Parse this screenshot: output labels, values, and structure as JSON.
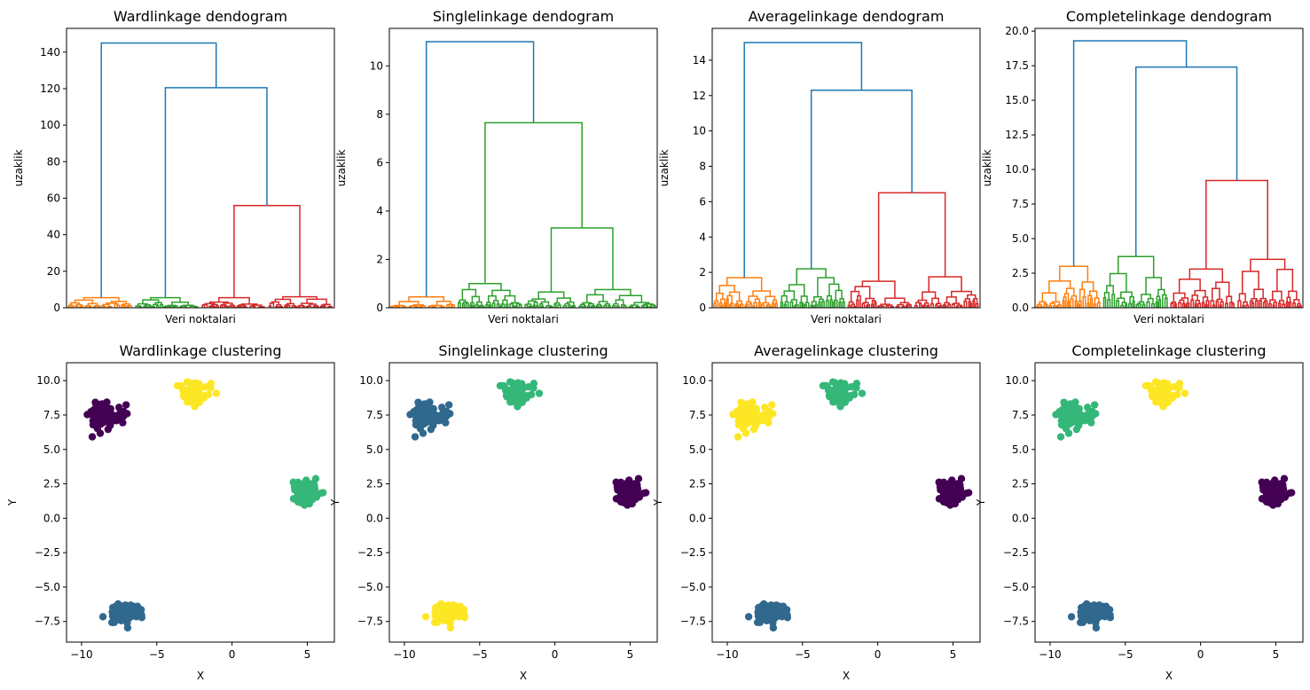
{
  "palette": {
    "blue": "#1f77b4",
    "orange": "#ff7f0e",
    "green": "#2ca02c",
    "red": "#d62728",
    "viridis_purple": "#440154",
    "viridis_blue": "#31688e",
    "viridis_green": "#35b779",
    "viridis_yellow": "#fde725"
  },
  "chart_data": [
    {
      "type": "dendrogram",
      "title": "Wardlinkage dendogram",
      "xlabel": "Veri noktalari",
      "ylabel": "uzaklik",
      "ylim": [
        0,
        153
      ],
      "yticks": [
        0,
        20,
        40,
        60,
        80,
        100,
        120,
        140
      ],
      "ytick_labels": [
        "0",
        "20",
        "40",
        "60",
        "80",
        "100",
        "120",
        "140"
      ],
      "leaf_groups": [
        {
          "color": "orange",
          "share": 0.25,
          "max_height": 5.5
        },
        {
          "color": "green",
          "share": 0.25,
          "max_height": 5.5
        },
        {
          "color": "red",
          "share": 0.25,
          "max_height": 5.5
        },
        {
          "color": "red",
          "share": 0.25,
          "max_height": 6.0
        }
      ],
      "merges": [
        {
          "height": 56.0,
          "color": "red",
          "left": "g2",
          "right": "g3",
          "id": "m1"
        },
        {
          "height": 120.5,
          "color": "blue",
          "left": "g1",
          "right": "m1",
          "id": "m2"
        },
        {
          "height": 145.0,
          "color": "blue",
          "left": "g0",
          "right": "m2",
          "id": "m3"
        }
      ]
    },
    {
      "type": "dendrogram",
      "title": "Singlelinkage dendogram",
      "xlabel": "Veri noktalari",
      "ylabel": "uzaklik",
      "ylim": [
        0,
        11.55
      ],
      "yticks": [
        0,
        2,
        4,
        6,
        8,
        10
      ],
      "ytick_labels": [
        "0",
        "2",
        "4",
        "6",
        "8",
        "10"
      ],
      "leaf_groups": [
        {
          "color": "orange",
          "share": 0.25,
          "max_height": 0.45
        },
        {
          "color": "green",
          "share": 0.25,
          "max_height": 1.0
        },
        {
          "color": "green",
          "share": 0.2,
          "max_height": 0.65
        },
        {
          "color": "green",
          "share": 0.3,
          "max_height": 0.75
        }
      ],
      "merges": [
        {
          "height": 3.3,
          "color": "green",
          "left": "g2",
          "right": "g3",
          "id": "m1"
        },
        {
          "height": 7.65,
          "color": "green",
          "left": "g1",
          "right": "m1",
          "id": "m2"
        },
        {
          "height": 11.0,
          "color": "blue",
          "left": "g0",
          "right": "m2",
          "id": "m3"
        }
      ]
    },
    {
      "type": "dendrogram",
      "title": "Averagelinkage dendogram",
      "xlabel": "Veri noktalari",
      "ylabel": "uzaklik",
      "ylim": [
        0,
        15.8
      ],
      "yticks": [
        0,
        2,
        4,
        6,
        8,
        10,
        12,
        14
      ],
      "ytick_labels": [
        "0",
        "2",
        "4",
        "6",
        "8",
        "10",
        "12",
        "14"
      ],
      "leaf_groups": [
        {
          "color": "orange",
          "share": 0.25,
          "max_height": 1.7
        },
        {
          "color": "green",
          "share": 0.25,
          "max_height": 2.2
        },
        {
          "color": "red",
          "share": 0.25,
          "max_height": 1.5
        },
        {
          "color": "red",
          "share": 0.25,
          "max_height": 1.75
        }
      ],
      "merges": [
        {
          "height": 6.5,
          "color": "red",
          "left": "g2",
          "right": "g3",
          "id": "m1"
        },
        {
          "height": 12.3,
          "color": "blue",
          "left": "g1",
          "right": "m1",
          "id": "m2"
        },
        {
          "height": 15.0,
          "color": "blue",
          "left": "g0",
          "right": "m2",
          "id": "m3"
        }
      ]
    },
    {
      "type": "dendrogram",
      "title": "Completelinkage dendogram",
      "xlabel": "Veri noktalari",
      "ylabel": "uzaklik",
      "ylim": [
        0,
        20.2
      ],
      "yticks": [
        0,
        2.5,
        5,
        7.5,
        10,
        12.5,
        15,
        17.5,
        20
      ],
      "ytick_labels": [
        "0.0",
        "2.5",
        "5.0",
        "7.5",
        "10.0",
        "12.5",
        "15.0",
        "17.5",
        "20.0"
      ],
      "leaf_groups": [
        {
          "color": "orange",
          "share": 0.25,
          "max_height": 3.0
        },
        {
          "color": "green",
          "share": 0.25,
          "max_height": 3.7
        },
        {
          "color": "red",
          "share": 0.25,
          "max_height": 2.8
        },
        {
          "color": "red",
          "share": 0.25,
          "max_height": 3.5
        }
      ],
      "merges": [
        {
          "height": 9.2,
          "color": "red",
          "left": "g2",
          "right": "g3",
          "id": "m1"
        },
        {
          "height": 17.4,
          "color": "blue",
          "left": "g1",
          "right": "m1",
          "id": "m2"
        },
        {
          "height": 19.3,
          "color": "blue",
          "left": "g0",
          "right": "m2",
          "id": "m3"
        }
      ]
    },
    {
      "type": "scatter",
      "title": "Wardlinkage clustering",
      "xlabel": "X",
      "ylabel": "Y",
      "xlim": [
        -11.0,
        6.8
      ],
      "ylim": [
        -9.0,
        11.3
      ],
      "xticks": [
        -10,
        -5,
        0,
        5
      ],
      "xtick_labels": [
        "−10",
        "−5",
        "0",
        "5"
      ],
      "yticks": [
        -7.5,
        -5,
        -2.5,
        0,
        2.5,
        5,
        7.5,
        10
      ],
      "ytick_labels": [
        "−7.5",
        "−5.0",
        "−2.5",
        "0.0",
        "2.5",
        "5.0",
        "7.5",
        "10.0"
      ],
      "clusters": [
        {
          "center": [
            -8.6,
            7.4
          ],
          "color": "viridis_purple",
          "spread": [
            0.75,
            0.6
          ]
        },
        {
          "center": [
            -2.5,
            9.1
          ],
          "color": "viridis_yellow",
          "spread": [
            0.6,
            0.55
          ]
        },
        {
          "center": [
            4.8,
            1.9
          ],
          "color": "viridis_green",
          "spread": [
            0.6,
            0.6
          ]
        },
        {
          "center": [
            -6.9,
            -6.8
          ],
          "color": "viridis_blue",
          "spread": [
            0.6,
            0.5
          ]
        }
      ]
    },
    {
      "type": "scatter",
      "title": "Singlelinkage clustering",
      "xlabel": "X",
      "ylabel": "Y",
      "xlim": [
        -11.0,
        6.8
      ],
      "ylim": [
        -9.0,
        11.3
      ],
      "xticks": [
        -10,
        -5,
        0,
        5
      ],
      "xtick_labels": [
        "−10",
        "−5",
        "0",
        "5"
      ],
      "yticks": [
        -7.5,
        -5,
        -2.5,
        0,
        2.5,
        5,
        7.5,
        10
      ],
      "ytick_labels": [
        "−7.5",
        "−5.0",
        "−2.5",
        "0.0",
        "2.5",
        "5.0",
        "7.5",
        "10.0"
      ],
      "clusters": [
        {
          "center": [
            -8.6,
            7.4
          ],
          "color": "viridis_blue",
          "spread": [
            0.75,
            0.6
          ]
        },
        {
          "center": [
            -2.5,
            9.1
          ],
          "color": "viridis_green",
          "spread": [
            0.6,
            0.55
          ]
        },
        {
          "center": [
            4.8,
            1.9
          ],
          "color": "viridis_purple",
          "spread": [
            0.6,
            0.6
          ]
        },
        {
          "center": [
            -6.9,
            -6.8
          ],
          "color": "viridis_yellow",
          "spread": [
            0.6,
            0.5
          ]
        }
      ]
    },
    {
      "type": "scatter",
      "title": "Averagelinkage clustering",
      "xlabel": "X",
      "ylabel": "Y",
      "xlim": [
        -11.0,
        6.8
      ],
      "ylim": [
        -9.0,
        11.3
      ],
      "xticks": [
        -10,
        -5,
        0,
        5
      ],
      "xtick_labels": [
        "−10",
        "−5",
        "0",
        "5"
      ],
      "yticks": [
        -7.5,
        -5,
        -2.5,
        0,
        2.5,
        5,
        7.5,
        10
      ],
      "ytick_labels": [
        "−7.5",
        "−5.0",
        "−2.5",
        "0.0",
        "2.5",
        "5.0",
        "7.5",
        "10.0"
      ],
      "clusters": [
        {
          "center": [
            -8.6,
            7.4
          ],
          "color": "viridis_yellow",
          "spread": [
            0.75,
            0.6
          ]
        },
        {
          "center": [
            -2.5,
            9.1
          ],
          "color": "viridis_green",
          "spread": [
            0.6,
            0.55
          ]
        },
        {
          "center": [
            4.8,
            1.9
          ],
          "color": "viridis_purple",
          "spread": [
            0.6,
            0.6
          ]
        },
        {
          "center": [
            -6.9,
            -6.8
          ],
          "color": "viridis_blue",
          "spread": [
            0.6,
            0.5
          ]
        }
      ]
    },
    {
      "type": "scatter",
      "title": "Completelinkage clustering",
      "xlabel": "X",
      "ylabel": "Y",
      "xlim": [
        -11.0,
        6.8
      ],
      "ylim": [
        -9.0,
        11.3
      ],
      "xticks": [
        -10,
        -5,
        0,
        5
      ],
      "xtick_labels": [
        "−10",
        "−5",
        "0",
        "5"
      ],
      "yticks": [
        -7.5,
        -5,
        -2.5,
        0,
        2.5,
        5,
        7.5,
        10
      ],
      "ytick_labels": [
        "−7.5",
        "−5.0",
        "−2.5",
        "0.0",
        "2.5",
        "5.0",
        "7.5",
        "10.0"
      ],
      "clusters": [
        {
          "center": [
            -8.6,
            7.4
          ],
          "color": "viridis_green",
          "spread": [
            0.75,
            0.6
          ]
        },
        {
          "center": [
            -2.5,
            9.1
          ],
          "color": "viridis_yellow",
          "spread": [
            0.6,
            0.55
          ]
        },
        {
          "center": [
            4.8,
            1.9
          ],
          "color": "viridis_purple",
          "spread": [
            0.6,
            0.6
          ]
        },
        {
          "center": [
            -6.9,
            -6.8
          ],
          "color": "viridis_blue",
          "spread": [
            0.6,
            0.5
          ]
        }
      ]
    }
  ]
}
